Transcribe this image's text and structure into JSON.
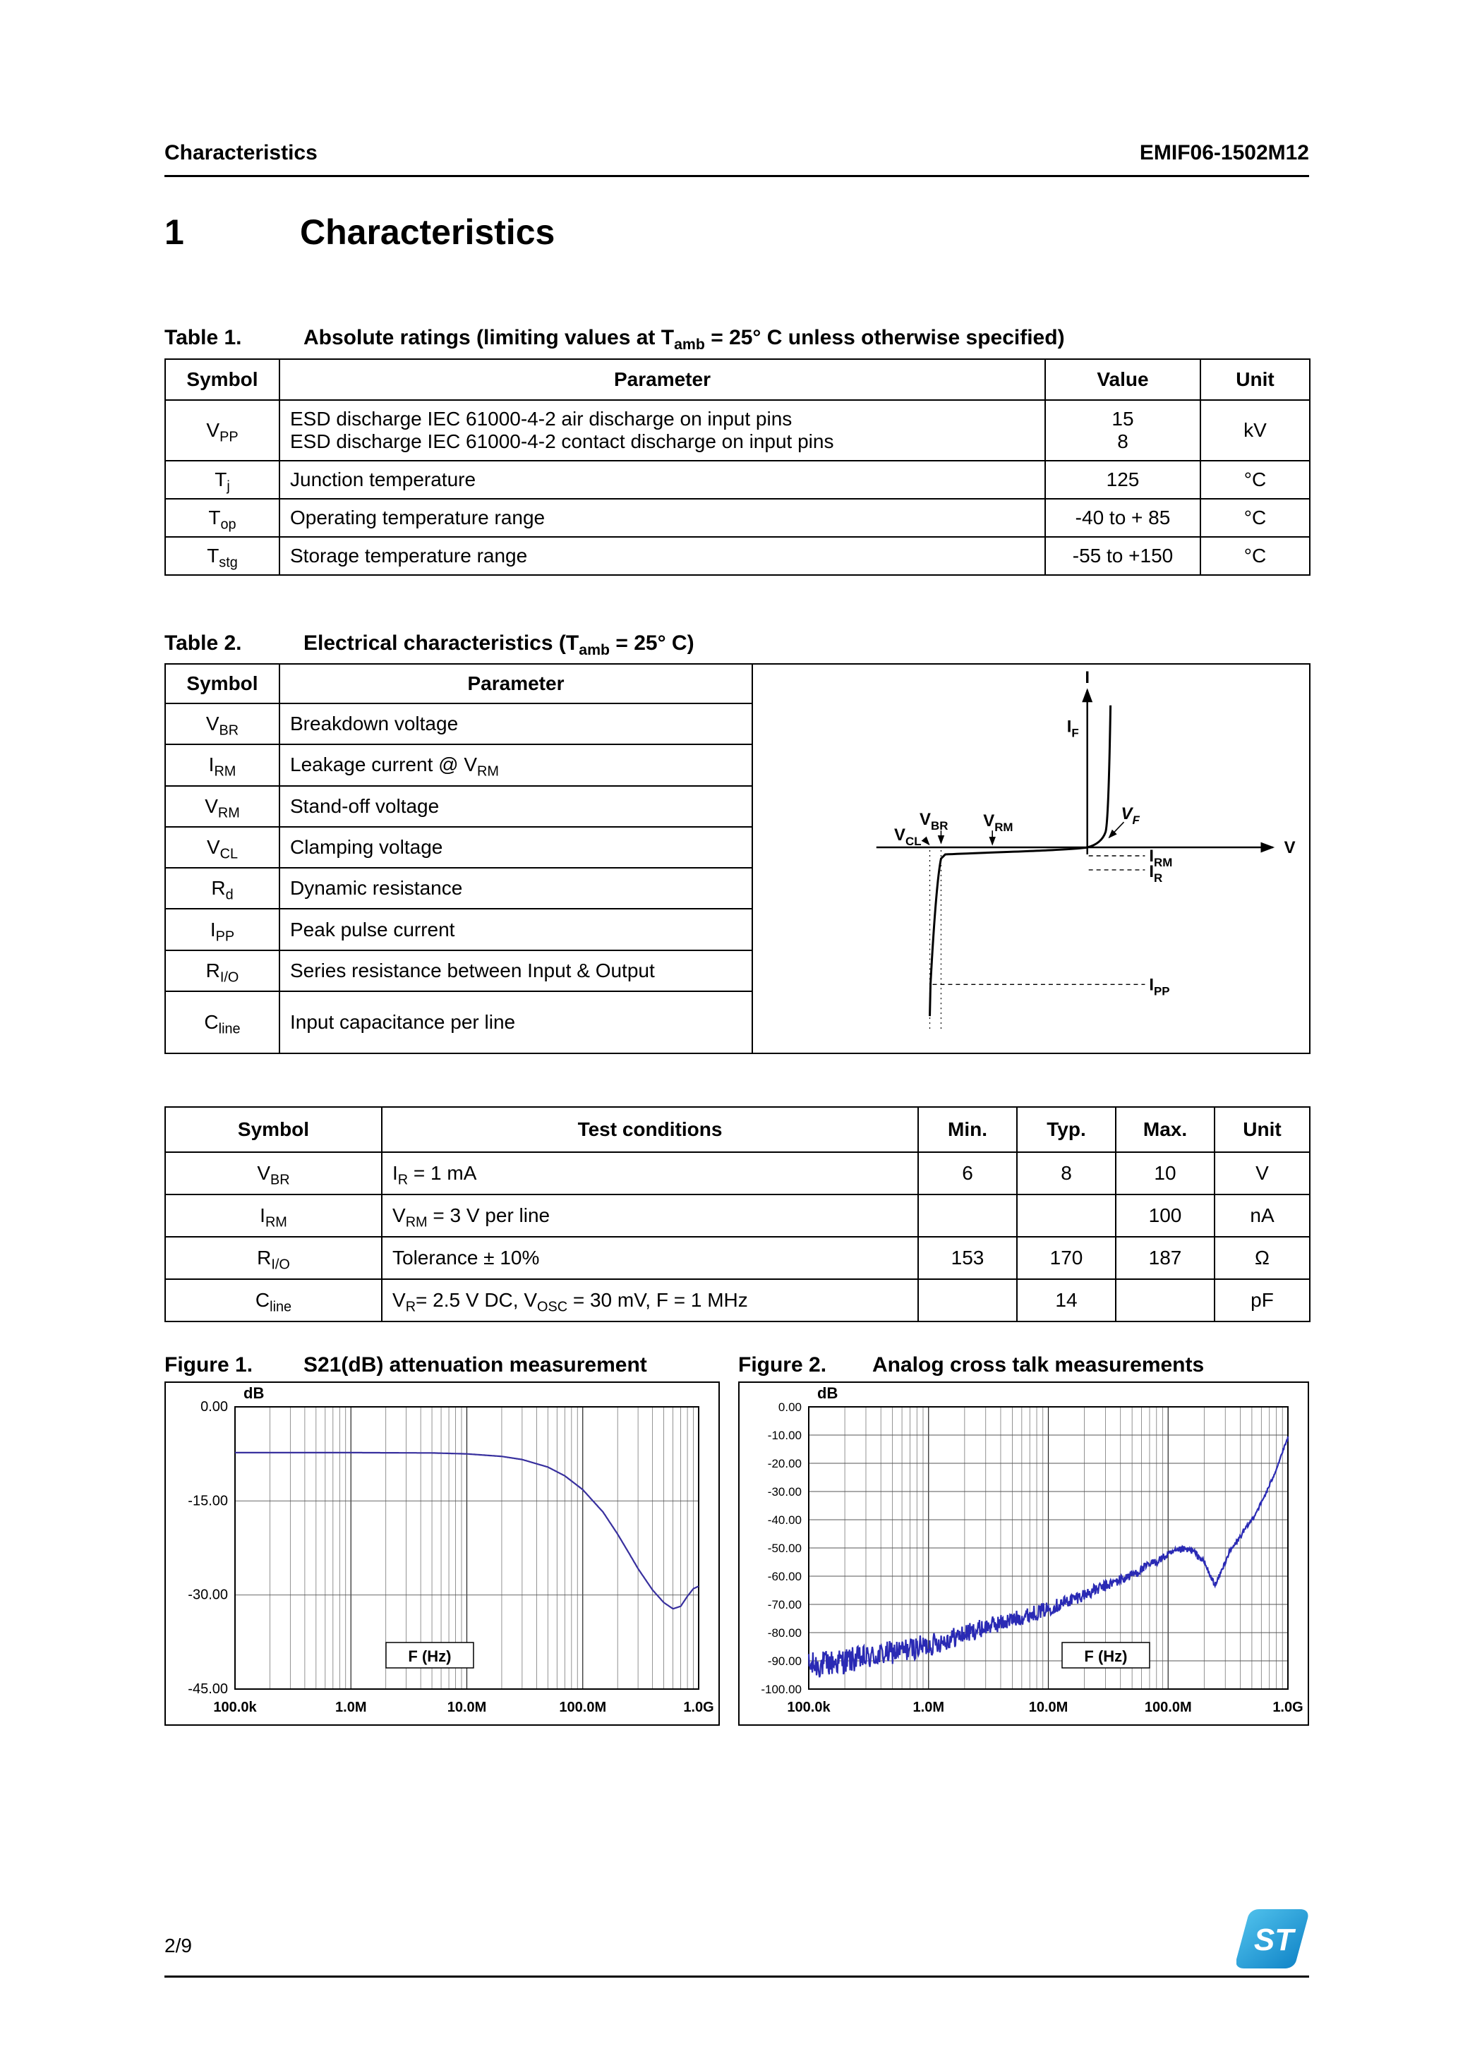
{
  "header": {
    "left": "Characteristics",
    "right": "EMIF06-1502M12"
  },
  "section": {
    "number": "1",
    "title": "Characteristics"
  },
  "table1": {
    "label": "Table 1.",
    "caption": [
      {
        "t": "Absolute ratings (limiting values at T"
      },
      {
        "s": "amb"
      },
      {
        "t": " = 25° C unless otherwise specified)"
      }
    ],
    "headers": [
      "Symbol",
      "Parameter",
      "Value",
      "Unit"
    ],
    "rows": [
      {
        "symbol": [
          {
            "t": "V"
          },
          {
            "s": "PP"
          }
        ],
        "parameter": [
          {
            "t": "ESD discharge IEC 61000-4-2 air discharge on input pins"
          },
          {
            "br": true
          },
          {
            "t": "ESD discharge IEC 61000-4-2 contact discharge on input pins"
          }
        ],
        "value": [
          {
            "t": "15"
          },
          {
            "br": true
          },
          {
            "t": "8"
          }
        ],
        "unit": [
          {
            "t": "kV"
          }
        ]
      },
      {
        "symbol": [
          {
            "t": "T"
          },
          {
            "s": "j"
          }
        ],
        "parameter": [
          {
            "t": "Junction temperature"
          }
        ],
        "value": [
          {
            "t": "125"
          }
        ],
        "unit": [
          {
            "t": "°C"
          }
        ]
      },
      {
        "symbol": [
          {
            "t": "T"
          },
          {
            "s": "op"
          }
        ],
        "parameter": [
          {
            "t": "Operating temperature range"
          }
        ],
        "value": [
          {
            "t": "-40 to + 85"
          }
        ],
        "unit": [
          {
            "t": "°C"
          }
        ]
      },
      {
        "symbol": [
          {
            "t": "T"
          },
          {
            "s": "stg"
          }
        ],
        "parameter": [
          {
            "t": "Storage temperature range"
          }
        ],
        "value": [
          {
            "t": "-55 to +150"
          }
        ],
        "unit": [
          {
            "t": "°C"
          }
        ]
      }
    ]
  },
  "table2": {
    "label": "Table 2.",
    "caption": [
      {
        "t": "Electrical characteristics (T"
      },
      {
        "s": "amb"
      },
      {
        "t": " = 25° C)"
      }
    ],
    "headers": [
      "Symbol",
      "Parameter"
    ],
    "rows": [
      {
        "symbol": [
          {
            "t": "V"
          },
          {
            "s": "BR"
          }
        ],
        "parameter": [
          {
            "t": "Breakdown voltage"
          }
        ]
      },
      {
        "symbol": [
          {
            "t": "I"
          },
          {
            "s": "RM"
          }
        ],
        "parameter": [
          {
            "t": "Leakage current @ V"
          },
          {
            "s": "RM"
          }
        ]
      },
      {
        "symbol": [
          {
            "t": "V"
          },
          {
            "s": "RM"
          }
        ],
        "parameter": [
          {
            "t": "Stand-off voltage"
          }
        ]
      },
      {
        "symbol": [
          {
            "t": "V"
          },
          {
            "s": "CL"
          }
        ],
        "parameter": [
          {
            "t": "Clamping voltage"
          }
        ]
      },
      {
        "symbol": [
          {
            "t": "R"
          },
          {
            "s": "d"
          }
        ],
        "parameter": [
          {
            "t": "Dynamic resistance"
          }
        ]
      },
      {
        "symbol": [
          {
            "t": "I"
          },
          {
            "s": "PP"
          }
        ],
        "parameter": [
          {
            "t": "Peak pulse current"
          }
        ]
      },
      {
        "symbol": [
          {
            "t": "R"
          },
          {
            "s": "I/O"
          }
        ],
        "parameter": [
          {
            "t": "Series resistance between Input & Output"
          }
        ]
      },
      {
        "symbol": [
          {
            "t": "C"
          },
          {
            "s": "line"
          }
        ],
        "parameter": [
          {
            "t": "Input capacitance per line"
          }
        ]
      }
    ],
    "diagram_labels": {
      "i": "I",
      "if_b": "I",
      "if_s": "F",
      "v": "V",
      "vbr_b": "V",
      "vbr_s": "BR",
      "vcl_b": "V",
      "vcl_s": "CL",
      "vrm_b": "V",
      "vrm_s": "RM",
      "vf_b": "V",
      "vf_s": "F",
      "irm_b": "I",
      "irm_s": "RM",
      "ir_b": "I",
      "ir_s": "R",
      "ipp_b": "I",
      "ipp_s": "PP"
    }
  },
  "spec_table": {
    "headers": [
      "Symbol",
      "Test conditions",
      "Min.",
      "Typ.",
      "Max.",
      "Unit"
    ],
    "rows": [
      {
        "symbol": [
          {
            "t": "V"
          },
          {
            "s": "BR"
          }
        ],
        "conditions": [
          {
            "t": "I"
          },
          {
            "s": "R"
          },
          {
            "t": " = 1 mA"
          }
        ],
        "min": "6",
        "typ": "8",
        "max": "10",
        "unit": "V"
      },
      {
        "symbol": [
          {
            "t": "I"
          },
          {
            "s": "RM"
          }
        ],
        "conditions": [
          {
            "t": "V"
          },
          {
            "s": "RM"
          },
          {
            "t": " = 3 V per line"
          }
        ],
        "min": "",
        "typ": "",
        "max": "100",
        "unit": "nA"
      },
      {
        "symbol": [
          {
            "t": "R"
          },
          {
            "s": "I/O"
          }
        ],
        "conditions": [
          {
            "t": "Tolerance ± 10%"
          }
        ],
        "min": "153",
        "typ": "170",
        "max": "187",
        "unit": "Ω"
      },
      {
        "symbol": [
          {
            "t": "C"
          },
          {
            "s": "line"
          }
        ],
        "conditions": [
          {
            "t": "V"
          },
          {
            "s": "R"
          },
          {
            "t": "= 2.5 V DC, V"
          },
          {
            "s": "OSC"
          },
          {
            "t": " = 30 mV, F = 1 MHz"
          }
        ],
        "min": "",
        "typ": "14",
        "max": "",
        "unit": "pF"
      }
    ]
  },
  "figures": {
    "fig1_label": "Figure 1.",
    "fig1_title": "S21(dB) attenuation measurement",
    "fig2_label": "Figure 2.",
    "fig2_title": "Analog cross talk measurements"
  },
  "chart_data": [
    {
      "id": "fig1",
      "type": "line",
      "title": "S21(dB) attenuation measurement",
      "ylabel": "dB",
      "xlabel": "F (Hz)",
      "x_scale": "log",
      "xlim": [
        100000.0,
        1000000000.0
      ],
      "ylim": [
        -45,
        0
      ],
      "yticks": [
        0,
        -15,
        -30,
        -45
      ],
      "ytick_labels": [
        "0.00",
        "-15.00",
        "-30.00",
        "-45.00"
      ],
      "xticks": [
        100000.0,
        1000000.0,
        10000000.0,
        100000000.0,
        1000000000.0
      ],
      "xtick_labels": [
        "100.0k",
        "1.0M",
        "10.0M",
        "100.0M",
        "1.0G"
      ],
      "line_color": "#38309e",
      "flabel_x_frac": 0.42,
      "grid": true,
      "noise": [],
      "points": [
        [
          100000.0,
          -7.3
        ],
        [
          500000.0,
          -7.3
        ],
        [
          1000000.0,
          -7.3
        ],
        [
          5000000.0,
          -7.35
        ],
        [
          10000000.0,
          -7.5
        ],
        [
          20000000.0,
          -7.9
        ],
        [
          30000000.0,
          -8.4
        ],
        [
          50000000.0,
          -9.6
        ],
        [
          70000000.0,
          -11.0
        ],
        [
          100000000.0,
          -13.2
        ],
        [
          150000000.0,
          -16.8
        ],
        [
          200000000.0,
          -20.3
        ],
        [
          250000000.0,
          -23.3
        ],
        [
          300000000.0,
          -25.8
        ],
        [
          400000000.0,
          -29.2
        ],
        [
          500000000.0,
          -31.2
        ],
        [
          600000000.0,
          -32.2
        ],
        [
          700000000.0,
          -31.8
        ],
        [
          800000000.0,
          -30.2
        ],
        [
          900000000.0,
          -29.0
        ],
        [
          1000000000.0,
          -28.6
        ]
      ]
    },
    {
      "id": "fig2",
      "type": "line",
      "title": "Analog cross talk measurements",
      "ylabel": "dB",
      "xlabel": "F (Hz)",
      "x_scale": "log",
      "xlim": [
        100000.0,
        1000000000.0
      ],
      "ylim": [
        -100,
        0
      ],
      "yticks": [
        0,
        -10,
        -20,
        -30,
        -40,
        -50,
        -60,
        -70,
        -80,
        -90,
        -100
      ],
      "ytick_labels": [
        "0.00",
        "-10.00",
        "-20.00",
        "-30.00",
        "-40.00",
        "-50.00",
        "-60.00",
        "-70.00",
        "-80.00",
        "-90.00",
        "-100.00"
      ],
      "xticks": [
        100000.0,
        1000000.0,
        10000000.0,
        100000000.0,
        1000000000.0
      ],
      "xtick_labels": [
        "100.0k",
        "1.0M",
        "10.0M",
        "100.0M",
        "1.0G"
      ],
      "line_color": "#2a2ab4",
      "flabel_x_frac": 0.62,
      "grid": true,
      "noise": [
        [
          100000.0,
          5
        ],
        [
          300000.0,
          4.5
        ],
        [
          1000000.0,
          4
        ],
        [
          3000000.0,
          3.2
        ],
        [
          10000000.0,
          2.6
        ],
        [
          30000000.0,
          2
        ],
        [
          100000000.0,
          1.4
        ],
        [
          300000000.0,
          0.9
        ],
        [
          1000000000.0,
          0.5
        ]
      ],
      "points": [
        [
          100000.0,
          -92
        ],
        [
          200000.0,
          -90
        ],
        [
          300000.0,
          -89
        ],
        [
          500000.0,
          -87
        ],
        [
          1000000.0,
          -84.5
        ],
        [
          2000000.0,
          -80.5
        ],
        [
          3000000.0,
          -78
        ],
        [
          5000000.0,
          -75.5
        ],
        [
          10000000.0,
          -71.5
        ],
        [
          20000000.0,
          -66.5
        ],
        [
          30000000.0,
          -63.5
        ],
        [
          50000000.0,
          -59.5
        ],
        [
          70000000.0,
          -56
        ],
        [
          100000000.0,
          -52.5
        ],
        [
          130000000.0,
          -50.5
        ],
        [
          160000000.0,
          -51
        ],
        [
          200000000.0,
          -55
        ],
        [
          230000000.0,
          -61
        ],
        [
          250000000.0,
          -63
        ],
        [
          280000000.0,
          -58
        ],
        [
          320000000.0,
          -52
        ],
        [
          400000000.0,
          -46
        ],
        [
          500000000.0,
          -40
        ],
        [
          600000000.0,
          -34
        ],
        [
          700000000.0,
          -28
        ],
        [
          800000000.0,
          -22
        ],
        [
          900000000.0,
          -16
        ],
        [
          1000000000.0,
          -11
        ]
      ]
    }
  ],
  "footer": {
    "page": "2/9",
    "logo_text": "ST"
  }
}
